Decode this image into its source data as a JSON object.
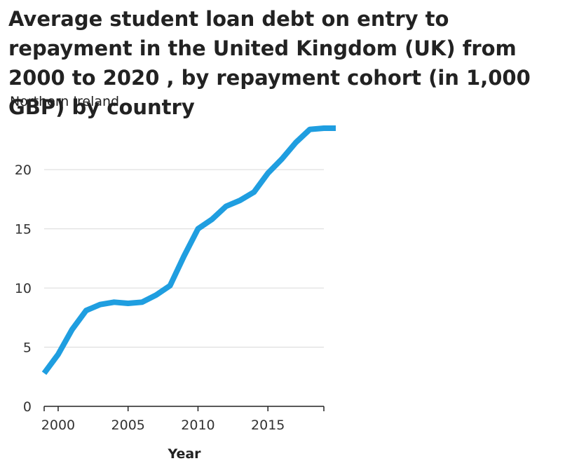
{
  "chart_data": {
    "type": "line",
    "title": "Average student loan debt on entry to repayment in the United Kingdom (UK) from 2000 to 2020 , by repayment cohort (in 1,000 GBP) by country",
    "subtitle": "Northern Ireland",
    "xlabel": "Year",
    "ylabel": "",
    "xlim": [
      1999,
      2019
    ],
    "ylim": [
      0,
      23.5
    ],
    "xticks": [
      2000,
      2005,
      2010,
      2015
    ],
    "yticks": [
      0,
      5,
      10,
      15,
      20
    ],
    "grid": "horizontal",
    "legend": "none",
    "series": [
      {
        "color": "#1f9ee0",
        "x": [
          1999,
          2000,
          2001,
          2002,
          2003,
          2004,
          2005,
          2006,
          2007,
          2008,
          2009,
          2010,
          2011,
          2012,
          2013,
          2014,
          2015,
          2016,
          2017,
          2018,
          2019,
          2019.85
        ],
        "y": [
          2.8,
          4.4,
          6.5,
          8.1,
          8.6,
          8.8,
          8.7,
          8.8,
          9.4,
          10.2,
          12.7,
          15.0,
          15.8,
          16.9,
          17.4,
          18.1,
          19.7,
          20.9,
          22.3,
          23.4,
          23.5,
          23.5
        ]
      }
    ]
  }
}
